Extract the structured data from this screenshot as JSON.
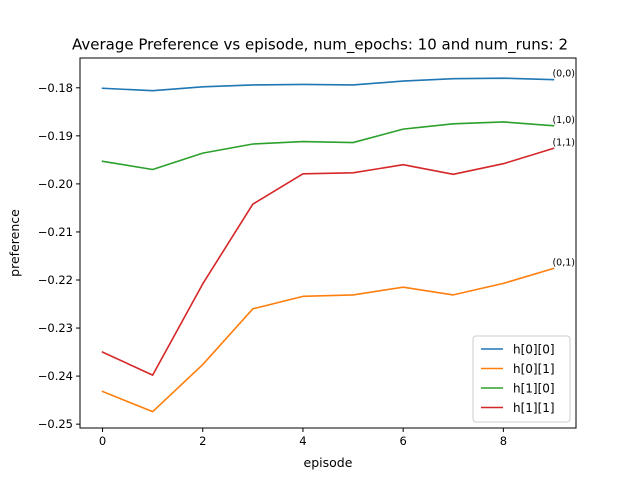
{
  "chart_data": {
    "type": "line",
    "title": "Average Preference vs episode, num_epochs: 10 and num_runs: 2",
    "xlabel": "episode",
    "ylabel": "preference",
    "x": [
      0,
      1,
      2,
      3,
      4,
      5,
      6,
      7,
      8,
      9
    ],
    "xlim": [
      -0.45,
      9.45
    ],
    "ylim": [
      -0.2508,
      -0.1738
    ],
    "xticks": [
      0,
      2,
      4,
      6,
      8
    ],
    "xtick_labels": [
      "0",
      "2",
      "4",
      "6",
      "8"
    ],
    "yticks": [
      -0.18,
      -0.19,
      -0.2,
      -0.21,
      -0.22,
      -0.23,
      -0.24,
      -0.25
    ],
    "ytick_labels": [
      "−0.18",
      "−0.19",
      "−0.20",
      "−0.21",
      "−0.22",
      "−0.23",
      "−0.24",
      "−0.25"
    ],
    "grid": false,
    "legend_position": "bottom-right",
    "series": [
      {
        "name": "h[0][0]",
        "color": "#1f77b4",
        "annotation": "(0,0)",
        "values": [
          -0.1801,
          -0.1806,
          -0.1798,
          -0.1794,
          -0.1793,
          -0.1794,
          -0.1786,
          -0.1781,
          -0.178,
          -0.1783
        ]
      },
      {
        "name": "h[0][1]",
        "color": "#ff7f0e",
        "annotation": "(0,1)",
        "values": [
          -0.2432,
          -0.2474,
          -0.2376,
          -0.226,
          -0.2234,
          -0.2231,
          -0.2215,
          -0.2231,
          -0.2207,
          -0.2176
        ]
      },
      {
        "name": "h[1][0]",
        "color": "#2ca02c",
        "annotation": "(1,0)",
        "values": [
          -0.1953,
          -0.197,
          -0.1936,
          -0.1917,
          -0.1912,
          -0.1914,
          -0.1886,
          -0.1875,
          -0.1871,
          -0.1879
        ]
      },
      {
        "name": "h[1][1]",
        "color": "#d62728",
        "annotation": "(1,1)",
        "values": [
          -0.235,
          -0.2398,
          -0.2208,
          -0.2042,
          -0.1979,
          -0.1977,
          -0.196,
          -0.198,
          -0.1958,
          -0.1926
        ]
      }
    ]
  }
}
